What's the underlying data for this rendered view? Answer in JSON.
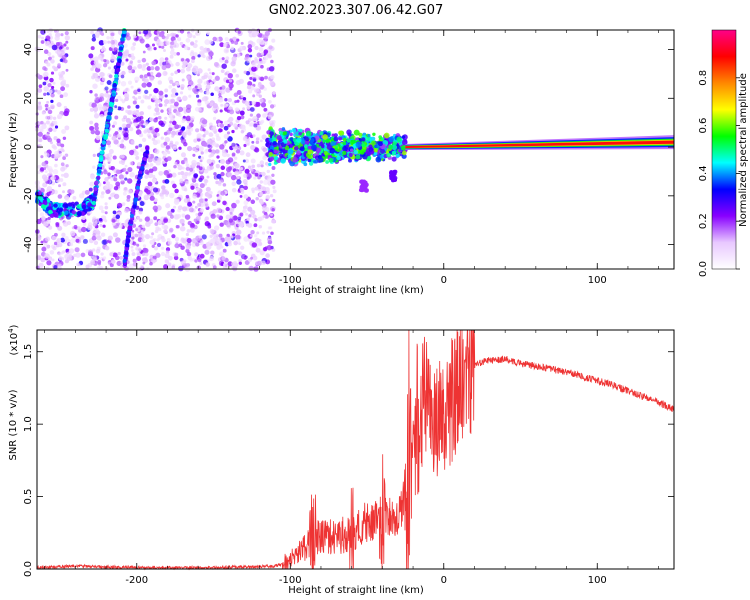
{
  "figure": {
    "title": "GN02.2023.307.06.42.G07"
  },
  "colors": {
    "snr_line": "#ee3333",
    "spectro_bg": "#ffffff"
  },
  "colorbar": {
    "label": "Normalized spectral amplitude",
    "range": [
      0,
      1
    ],
    "ticks": [
      0.0,
      0.2,
      0.4,
      0.6,
      0.8
    ],
    "tick_labels": [
      "0.0",
      "0.2",
      "0.4",
      "0.6",
      "0.8"
    ],
    "colormap": [
      "#ffffff",
      "#e8c8ff",
      "#8800ff",
      "#0000ff",
      "#00ffff",
      "#00ff00",
      "#ffff00",
      "#ff8800",
      "#ff0000",
      "#ff0088"
    ]
  },
  "chart_data": [
    {
      "type": "heatmap",
      "xlabel": "Height of straight line (km)",
      "ylabel": "Frequency (Hz)",
      "xlim": [
        -265,
        150
      ],
      "ylim": [
        -50,
        48
      ],
      "xticks": [
        -200,
        -100,
        0,
        100
      ],
      "xtick_labels": [
        "-200",
        "-100",
        "0",
        "100"
      ],
      "yticks": [
        -40,
        -20,
        0,
        20,
        40
      ],
      "ytick_labels": [
        "-40",
        "-20",
        "0",
        "20",
        "40"
      ],
      "features": [
        {
          "name": "noise-field",
          "x_range": [
            -265,
            -110
          ],
          "freq_range": [
            -50,
            48
          ]
        },
        {
          "name": "low-band-track",
          "points": [
            [
              -265,
              -20
            ],
            [
              -255,
              -26
            ],
            [
              -235,
              -25
            ],
            [
              -228,
              -22
            ]
          ]
        },
        {
          "name": "rising-track-1",
          "points": [
            [
              -228,
              -22
            ],
            [
              -222,
              0
            ],
            [
              -218,
              12
            ],
            [
              -213,
              30
            ],
            [
              -208,
              48
            ]
          ]
        },
        {
          "name": "rising-track-2",
          "points": [
            [
              -208,
              -48
            ],
            [
              -205,
              -35
            ],
            [
              -198,
              -12
            ],
            [
              -193,
              -1
            ]
          ]
        },
        {
          "name": "transition-band",
          "x_range": [
            -115,
            -25
          ],
          "freq_range": [
            -15,
            12
          ]
        },
        {
          "name": "central-line",
          "x_range": [
            -25,
            150
          ],
          "freq": 0,
          "slope_end_freq": 2
        }
      ]
    },
    {
      "type": "line",
      "xlabel": "Height of straight line (km)",
      "ylabel": "SNR (10 * v/v)",
      "y_multiplier_label": "(x10",
      "y_multiplier_exp": "4",
      "y_multiplier_close": ")",
      "xlim": [
        -265,
        150
      ],
      "ylim": [
        0,
        1.65
      ],
      "xticks": [
        -200,
        -100,
        0,
        100
      ],
      "xtick_labels": [
        "-200",
        "-100",
        "0",
        "100"
      ],
      "yticks": [
        0.0,
        0.5,
        1.0,
        1.5
      ],
      "ytick_labels": [
        "0.0",
        "0.5",
        "1.0",
        "1.5"
      ],
      "series": [
        {
          "x": [
            -265,
            -240,
            -200,
            -150,
            -110,
            -100,
            -90,
            -80,
            -70,
            -60,
            -50,
            -40,
            -30,
            -25,
            -20,
            -15,
            -12,
            -8,
            -5,
            0,
            5,
            10,
            15,
            20,
            25,
            30,
            40,
            50,
            60,
            70,
            80,
            90,
            100,
            110,
            120,
            130,
            140,
            150
          ],
          "y": [
            0.01,
            0.02,
            0.01,
            0.01,
            0.02,
            0.05,
            0.15,
            0.22,
            0.2,
            0.25,
            0.3,
            0.3,
            0.35,
            0.45,
            0.75,
            1.05,
            1.15,
            1.0,
            0.98,
            1.05,
            1.12,
            1.25,
            1.35,
            1.4,
            1.43,
            1.44,
            1.45,
            1.42,
            1.4,
            1.38,
            1.36,
            1.33,
            1.3,
            1.27,
            1.23,
            1.19,
            1.15,
            1.1
          ],
          "envelope_peaks": [
            {
              "x": -85,
              "y": 0.58
            },
            {
              "x": -60,
              "y": 0.55
            },
            {
              "x": -40,
              "y": 0.7
            },
            {
              "x": -23,
              "y": 1.6
            },
            {
              "x": -17,
              "y": 1.63
            },
            {
              "x": 10,
              "y": 1.55
            },
            {
              "x": 25,
              "y": 1.5
            }
          ]
        }
      ]
    }
  ]
}
